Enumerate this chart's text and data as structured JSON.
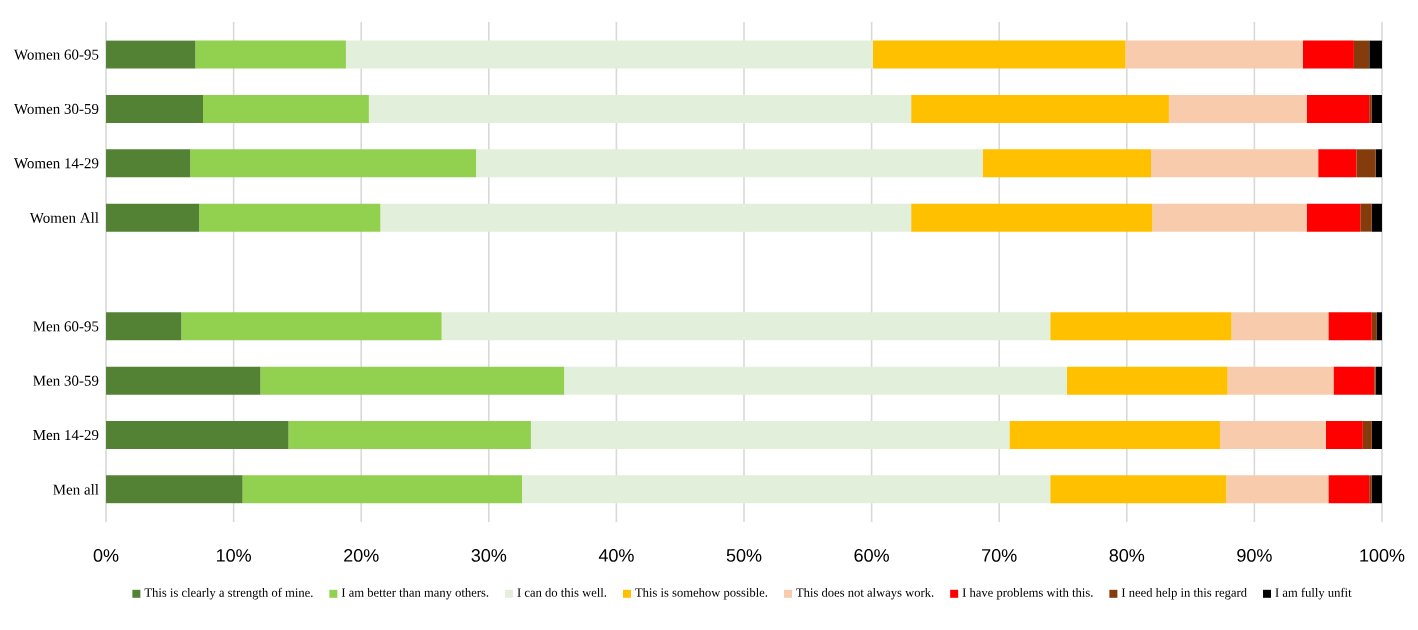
{
  "chart_data": {
    "type": "bar",
    "orientation": "horizontal",
    "stacked": true,
    "categories": [
      "Women 60-95",
      "Women 30-59",
      "Women 14-29",
      "Women All",
      null,
      "Men 60-95",
      "Men 30-59",
      "Men 14-29",
      "Men all"
    ],
    "series": [
      {
        "name": "This is clearly a strength of mine.",
        "color": "#548235",
        "values": [
          7.0,
          7.6,
          6.6,
          7.3,
          null,
          5.9,
          12.1,
          14.3,
          10.7
        ]
      },
      {
        "name": "I am better than many others.",
        "color": "#92d050",
        "values": [
          11.8,
          13.0,
          22.4,
          14.2,
          null,
          20.4,
          23.8,
          19.0,
          21.9
        ]
      },
      {
        "name": "I can do this well.",
        "color": "#e2efda",
        "values": [
          41.3,
          42.5,
          39.7,
          41.6,
          null,
          47.7,
          39.4,
          37.5,
          41.4
        ]
      },
      {
        "name": "This is somehow possible.",
        "color": "#ffc000",
        "values": [
          19.8,
          20.2,
          13.2,
          18.9,
          null,
          14.2,
          12.6,
          16.5,
          13.8
        ]
      },
      {
        "name": "This does not always work.",
        "color": "#f8cbad",
        "values": [
          13.9,
          10.8,
          13.1,
          12.1,
          null,
          7.6,
          8.3,
          8.3,
          8.0
        ]
      },
      {
        "name": "I have problems with this.",
        "color": "#ff0000",
        "values": [
          4.0,
          4.9,
          3.0,
          4.2,
          null,
          3.4,
          3.2,
          2.9,
          3.2
        ]
      },
      {
        "name": "I need help in this regard",
        "color": "#843c0c",
        "values": [
          1.2,
          0.2,
          1.5,
          0.9,
          null,
          0.4,
          0.1,
          0.7,
          0.2
        ]
      },
      {
        "name": "I am fully unfit",
        "color": "#000000",
        "values": [
          1.0,
          0.8,
          0.5,
          0.8,
          null,
          0.4,
          0.5,
          0.8,
          0.8
        ]
      }
    ],
    "xlim": [
      0,
      100
    ],
    "xticks": [
      {
        "value": 0,
        "label": "0%"
      },
      {
        "value": 10,
        "label": "10%"
      },
      {
        "value": 20,
        "label": "20%"
      },
      {
        "value": 30,
        "label": "30%"
      },
      {
        "value": 40,
        "label": "40%"
      },
      {
        "value": 50,
        "label": "50%"
      },
      {
        "value": 60,
        "label": "60%"
      },
      {
        "value": 70,
        "label": "70%"
      },
      {
        "value": 80,
        "label": "80%"
      },
      {
        "value": 90,
        "label": "90%"
      },
      {
        "value": 100,
        "label": "100%"
      }
    ],
    "grid": "x",
    "legend": "bottom"
  }
}
